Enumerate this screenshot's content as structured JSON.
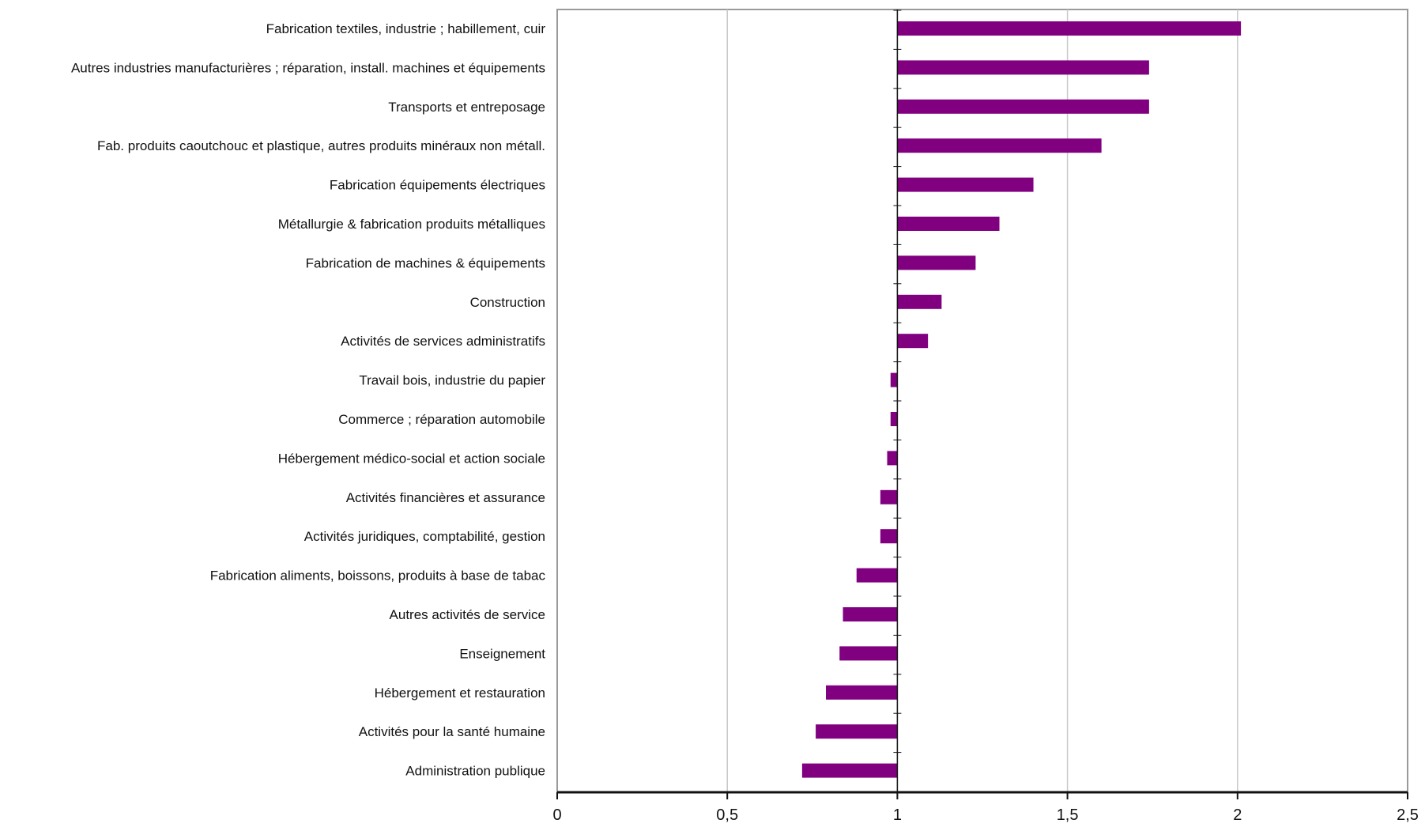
{
  "chart_data": {
    "type": "bar",
    "orientation": "horizontal",
    "baseline": 1,
    "xlim": [
      0,
      2.5
    ],
    "xticks": [
      0,
      0.5,
      1,
      1.5,
      2,
      2.5
    ],
    "xtick_labels": [
      "0",
      "0,5",
      "1",
      "1,5",
      "2",
      "2,5"
    ],
    "grid": "vertical",
    "legend": "none",
    "title": "",
    "xlabel": "",
    "ylabel": "",
    "categories": [
      "Fabrication textiles, industrie ; habillement, cuir",
      "Autres industries manufacturières ; réparation, install. machines et équipements",
      "Transports et entreposage",
      "Fab. produits caoutchouc et plastique, autres produits minéraux non métall.",
      "Fabrication équipements électriques",
      "Métallurgie & fabrication produits métalliques",
      "Fabrication de machines & équipements",
      "Construction",
      "Activités de services administratifs",
      "Travail bois, industrie du papier",
      "Commerce ; réparation automobile",
      "Hébergement médico-social et action sociale",
      "Activités financières et assurance",
      "Activités juridiques, comptabilité, gestion",
      "Fabrication aliments, boissons, produits à base de tabac",
      "Autres activités de service",
      "Enseignement",
      "Hébergement et restauration",
      "Activités pour la santé humaine",
      "Administration publique"
    ],
    "values": [
      2.01,
      1.74,
      1.74,
      1.6,
      1.4,
      1.3,
      1.23,
      1.13,
      1.09,
      0.98,
      0.98,
      0.97,
      0.95,
      0.95,
      0.88,
      0.84,
      0.83,
      0.79,
      0.76,
      0.72
    ],
    "bar_color": "#800080"
  }
}
